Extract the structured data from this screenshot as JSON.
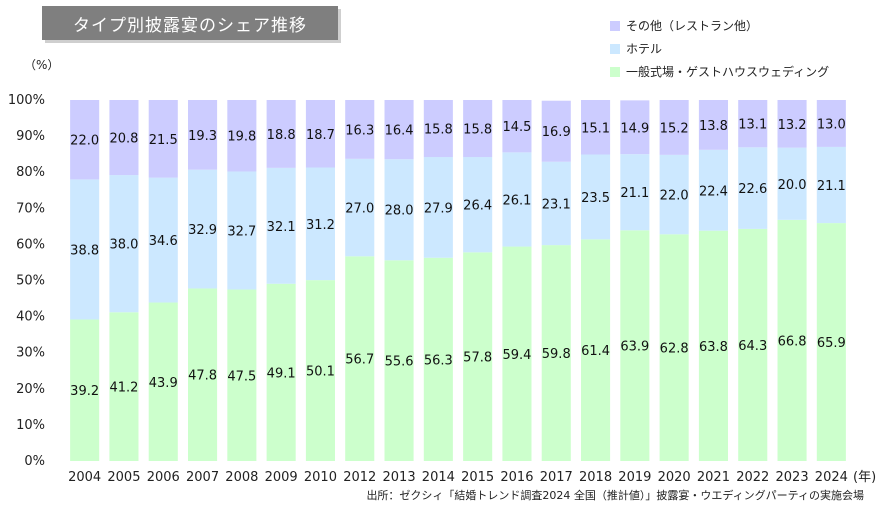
{
  "chart_data": {
    "type": "bar",
    "stacked": true,
    "title": "タイプ別披露宴のシェア推移",
    "unit_label": "（%）",
    "x_suffix": "(年)",
    "source": "出所：ゼクシィ「結婚トレンド調査2024 全国（推計値）」披露宴・ウエディングパーティの実施会場",
    "ylim": [
      0,
      100
    ],
    "yticks": [
      "0%",
      "10%",
      "20%",
      "30%",
      "40%",
      "50%",
      "60%",
      "70%",
      "80%",
      "90%",
      "100%"
    ],
    "categories": [
      "2004",
      "2005",
      "2006",
      "2007",
      "2008",
      "2009",
      "2010",
      "2012",
      "2013",
      "2014",
      "2015",
      "2016",
      "2017",
      "2018",
      "2019",
      "2020",
      "2021",
      "2022",
      "2023",
      "2024"
    ],
    "series": [
      {
        "name": "一般式場・ゲストハウスウェディング",
        "color": "#ccffcc",
        "values": [
          39.2,
          41.2,
          43.9,
          47.8,
          47.5,
          49.1,
          50.1,
          56.7,
          55.6,
          56.3,
          57.8,
          59.4,
          59.8,
          61.4,
          63.9,
          62.8,
          63.8,
          64.3,
          66.8,
          65.9
        ]
      },
      {
        "name": "ホテル",
        "color": "#cce8ff",
        "values": [
          38.8,
          38.0,
          34.6,
          32.9,
          32.7,
          32.1,
          31.2,
          27.0,
          28.0,
          27.9,
          26.4,
          26.1,
          23.1,
          23.5,
          21.1,
          22.0,
          22.4,
          22.6,
          20.0,
          21.1
        ]
      },
      {
        "name": "その他（レストラン他）",
        "color": "#ccccff",
        "values": [
          22.0,
          20.8,
          21.5,
          19.3,
          19.8,
          18.8,
          18.7,
          16.3,
          16.4,
          15.8,
          15.8,
          14.5,
          16.9,
          15.1,
          14.9,
          15.2,
          13.8,
          13.1,
          13.2,
          13.0
        ]
      }
    ],
    "legend_order": [
      "その他（レストラン他）",
      "ホテル",
      "一般式場・ゲストハウスウェディング"
    ],
    "legend_position": "top-right",
    "grid": false
  }
}
